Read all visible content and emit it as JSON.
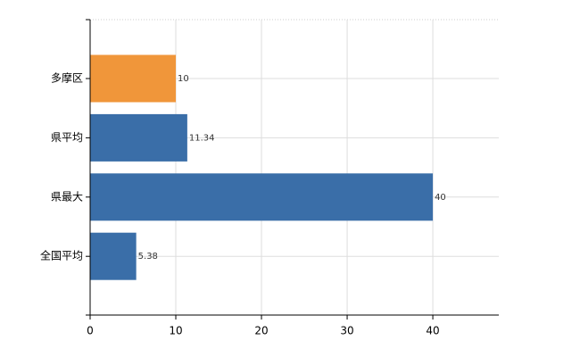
{
  "chart_data": {
    "type": "barh",
    "categories": [
      "多摩区",
      "県平均",
      "県最大",
      "全国平均"
    ],
    "values": [
      10,
      11.34,
      40,
      5.38
    ],
    "colors": [
      "#f0963a",
      "#3a6ea8",
      "#3a6ea8",
      "#3a6ea8"
    ],
    "xlim": [
      0,
      47.7
    ],
    "xticks": [
      0,
      10,
      20,
      30,
      40
    ],
    "grid": true
  }
}
